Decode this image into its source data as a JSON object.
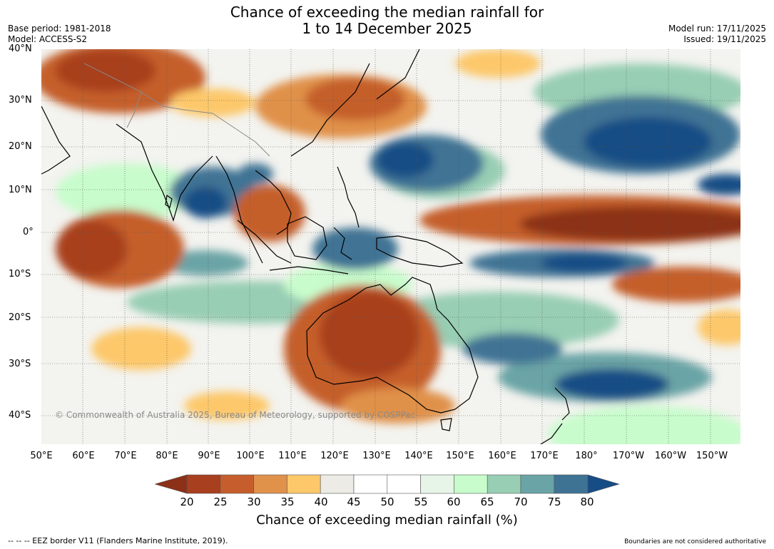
{
  "title": {
    "line1": "Chance of exceeding the median rainfall for",
    "line2": "1 to 14 December 2025"
  },
  "meta": {
    "base_period": "Base period: 1981-2018",
    "model": "Model: ACCESS-S2",
    "model_run": "Model run: 17/11/2025",
    "issued": "Issued: 19/11/2025"
  },
  "map": {
    "copyright": "© Commonwealth of Australia 2025, Bureau of Meteorology, supported by COSPPac",
    "lat_labels": [
      "40°N",
      "30°N",
      "20°N",
      "10°N",
      "0°",
      "10°S",
      "20°S",
      "30°S",
      "40°S"
    ],
    "lon_labels": [
      "50°E",
      "60°E",
      "70°E",
      "80°E",
      "90°E",
      "100°E",
      "110°E",
      "120°E",
      "130°E",
      "140°E",
      "150°E",
      "160°E",
      "170°E",
      "180°",
      "170°W",
      "160°W",
      "150°W"
    ]
  },
  "colorbar": {
    "label": "Chance of exceeding median rainfall (%)",
    "ticks": [
      "20",
      "25",
      "30",
      "35",
      "40",
      "45",
      "50",
      "55",
      "60",
      "65",
      "70",
      "75",
      "80"
    ],
    "colors": {
      "under": "#8c3018",
      "bins": [
        "#a83f1f",
        "#c55e2c",
        "#e0914a",
        "#fdc86a",
        "#ecebe6",
        "#ffffff",
        "#ffffff",
        "#e7f5e8",
        "#c8fccc",
        "#98ceb4",
        "#6aa4a6",
        "#3f7394"
      ],
      "over": "#174d85"
    }
  },
  "footer": {
    "eez_note": "--  --  -- EEZ border V11 (Flanders Marine Institute, 2019).",
    "boundaries_note": "Boundaries are not considered authoritative"
  }
}
